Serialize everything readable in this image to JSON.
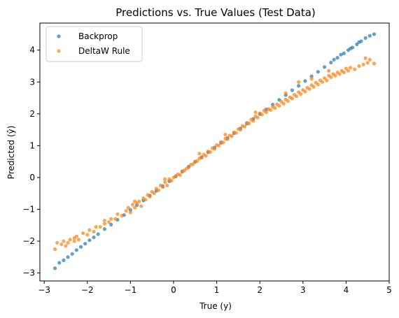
{
  "chart_data": {
    "type": "scatter",
    "title": "Predictions vs. True Values (Test Data)",
    "xlabel": "True (y)",
    "ylabel": "Predicted (ŷ)",
    "xlim": [
      -3.1,
      5.0
    ],
    "ylim": [
      -3.25,
      4.85
    ],
    "xticks": [
      -3,
      -2,
      -1,
      0,
      1,
      2,
      3,
      4,
      5
    ],
    "xtick_labels": [
      "−3",
      "−2",
      "−1",
      "0",
      "1",
      "2",
      "3",
      "4",
      "5"
    ],
    "yticks": [
      -3,
      -2,
      -1,
      0,
      1,
      2,
      3,
      4
    ],
    "ytick_labels": [
      "−3",
      "−2",
      "−1",
      "0",
      "1",
      "2",
      "3",
      "4"
    ],
    "grid": false,
    "legend_position": "upper-left",
    "series": [
      {
        "name": "Backprop",
        "color": "#1f77b4",
        "points": [
          [
            -2.75,
            -2.85
          ],
          [
            -2.65,
            -2.68
          ],
          [
            -2.55,
            -2.6
          ],
          [
            -2.45,
            -2.5
          ],
          [
            -2.35,
            -2.4
          ],
          [
            -2.25,
            -2.28
          ],
          [
            -2.15,
            -2.18
          ],
          [
            -2.05,
            -2.08
          ],
          [
            -1.95,
            -1.97
          ],
          [
            -1.85,
            -1.88
          ],
          [
            -1.75,
            -1.78
          ],
          [
            -1.6,
            -1.62
          ],
          [
            -1.45,
            -1.48
          ],
          [
            -1.3,
            -1.33
          ],
          [
            -1.15,
            -1.18
          ],
          [
            -1.0,
            -1.02
          ],
          [
            -0.85,
            -0.87
          ],
          [
            -0.7,
            -0.72
          ],
          [
            -0.55,
            -0.57
          ],
          [
            -0.4,
            -0.42
          ],
          [
            -0.25,
            -0.27
          ],
          [
            -0.1,
            -0.12
          ],
          [
            0.05,
            0.03
          ],
          [
            0.2,
            0.18
          ],
          [
            0.35,
            0.34
          ],
          [
            0.5,
            0.49
          ],
          [
            0.65,
            0.64
          ],
          [
            0.8,
            0.79
          ],
          [
            0.95,
            0.94
          ],
          [
            1.1,
            1.09
          ],
          [
            1.25,
            1.24
          ],
          [
            1.4,
            1.39
          ],
          [
            1.55,
            1.54
          ],
          [
            1.7,
            1.69
          ],
          [
            1.85,
            1.84
          ],
          [
            2.0,
            1.99
          ],
          [
            2.15,
            2.14
          ],
          [
            2.3,
            2.29
          ],
          [
            2.45,
            2.44
          ],
          [
            2.6,
            2.59
          ],
          [
            2.75,
            2.74
          ],
          [
            2.9,
            2.88
          ],
          [
            3.05,
            3.03
          ],
          [
            3.2,
            3.18
          ],
          [
            3.35,
            3.32
          ],
          [
            3.5,
            3.47
          ],
          [
            3.65,
            3.61
          ],
          [
            3.8,
            3.76
          ],
          [
            3.95,
            3.9
          ],
          [
            4.05,
            4.0
          ],
          [
            4.15,
            4.08
          ],
          [
            4.25,
            4.18
          ],
          [
            4.35,
            4.28
          ],
          [
            4.45,
            4.38
          ],
          [
            4.55,
            4.45
          ],
          [
            4.65,
            4.5
          ],
          [
            3.72,
            3.7
          ],
          [
            3.88,
            3.86
          ],
          [
            4.1,
            4.05
          ],
          [
            4.3,
            4.25
          ]
        ]
      },
      {
        "name": "DeltaW Rule",
        "color": "#ff7f0e",
        "points": [
          [
            -2.75,
            -2.25
          ],
          [
            -2.7,
            -2.05
          ],
          [
            -2.6,
            -2.1
          ],
          [
            -2.55,
            -2.0
          ],
          [
            -2.5,
            -2.15
          ],
          [
            -2.45,
            -2.05
          ],
          [
            -2.4,
            -1.95
          ],
          [
            -2.3,
            -2.0
          ],
          [
            -2.25,
            -1.85
          ],
          [
            -2.2,
            -1.95
          ],
          [
            -2.1,
            -1.75
          ],
          [
            -2.0,
            -1.8
          ],
          [
            -1.95,
            -1.65
          ],
          [
            -1.85,
            -1.7
          ],
          [
            -1.8,
            -1.55
          ],
          [
            -1.7,
            -1.55
          ],
          [
            -1.6,
            -1.45
          ],
          [
            -1.5,
            -1.4
          ],
          [
            -1.45,
            -1.3
          ],
          [
            -1.35,
            -1.3
          ],
          [
            -1.3,
            -1.15
          ],
          [
            -1.2,
            -1.2
          ],
          [
            -1.1,
            -1.05
          ],
          [
            -1.05,
            -0.95
          ],
          [
            -1.0,
            -1.1
          ],
          [
            -0.95,
            -0.85
          ],
          [
            -0.9,
            -0.95
          ],
          [
            -0.85,
            -0.8
          ],
          [
            -0.8,
            -0.75
          ],
          [
            -0.75,
            -0.9
          ],
          [
            -0.7,
            -0.65
          ],
          [
            -0.65,
            -0.7
          ],
          [
            -0.6,
            -0.55
          ],
          [
            -0.55,
            -0.6
          ],
          [
            -0.5,
            -0.45
          ],
          [
            -0.45,
            -0.5
          ],
          [
            -0.4,
            -0.35
          ],
          [
            -0.35,
            -0.4
          ],
          [
            -0.3,
            -0.25
          ],
          [
            -0.25,
            -0.3
          ],
          [
            -0.2,
            -0.15
          ],
          [
            -0.15,
            -0.25
          ],
          [
            -0.1,
            -0.05
          ],
          [
            -0.05,
            -0.1
          ],
          [
            0.0,
            0.0
          ],
          [
            0.05,
            0.05
          ],
          [
            0.1,
            0.1
          ],
          [
            0.15,
            0.08
          ],
          [
            0.2,
            0.2
          ],
          [
            0.25,
            0.22
          ],
          [
            0.3,
            0.28
          ],
          [
            0.35,
            0.32
          ],
          [
            0.4,
            0.4
          ],
          [
            0.45,
            0.42
          ],
          [
            0.5,
            0.5
          ],
          [
            0.55,
            0.52
          ],
          [
            0.6,
            0.6
          ],
          [
            0.65,
            0.62
          ],
          [
            0.7,
            0.72
          ],
          [
            0.75,
            0.68
          ],
          [
            0.8,
            0.82
          ],
          [
            0.85,
            0.8
          ],
          [
            0.9,
            0.92
          ],
          [
            0.95,
            0.9
          ],
          [
            1.0,
            1.02
          ],
          [
            1.05,
            1.0
          ],
          [
            1.1,
            1.12
          ],
          [
            1.15,
            1.1
          ],
          [
            1.2,
            1.22
          ],
          [
            1.25,
            1.2
          ],
          [
            1.3,
            1.32
          ],
          [
            1.35,
            1.3
          ],
          [
            1.4,
            1.42
          ],
          [
            1.45,
            1.4
          ],
          [
            1.5,
            1.52
          ],
          [
            1.55,
            1.5
          ],
          [
            1.6,
            1.62
          ],
          [
            1.65,
            1.6
          ],
          [
            1.7,
            1.72
          ],
          [
            1.75,
            1.7
          ],
          [
            1.8,
            1.82
          ],
          [
            1.85,
            1.78
          ],
          [
            1.9,
            1.92
          ],
          [
            1.95,
            1.88
          ],
          [
            2.0,
            2.02
          ],
          [
            2.05,
            1.98
          ],
          [
            2.1,
            2.1
          ],
          [
            2.15,
            2.05
          ],
          [
            2.2,
            2.15
          ],
          [
            2.25,
            2.12
          ],
          [
            2.3,
            2.22
          ],
          [
            2.35,
            2.18
          ],
          [
            2.4,
            2.3
          ],
          [
            2.45,
            2.25
          ],
          [
            2.5,
            2.38
          ],
          [
            2.55,
            2.32
          ],
          [
            2.6,
            2.45
          ],
          [
            2.65,
            2.4
          ],
          [
            2.7,
            2.52
          ],
          [
            2.75,
            2.48
          ],
          [
            2.8,
            2.6
          ],
          [
            2.85,
            2.55
          ],
          [
            2.9,
            2.68
          ],
          [
            2.95,
            2.62
          ],
          [
            3.0,
            2.75
          ],
          [
            3.05,
            2.7
          ],
          [
            3.1,
            2.82
          ],
          [
            3.15,
            2.78
          ],
          [
            3.2,
            2.9
          ],
          [
            3.25,
            2.85
          ],
          [
            3.3,
            2.98
          ],
          [
            3.35,
            2.92
          ],
          [
            3.4,
            3.05
          ],
          [
            3.45,
            3.0
          ],
          [
            3.5,
            3.12
          ],
          [
            3.55,
            3.05
          ],
          [
            3.6,
            3.2
          ],
          [
            3.65,
            3.15
          ],
          [
            3.7,
            3.25
          ],
          [
            3.75,
            3.2
          ],
          [
            3.8,
            3.3
          ],
          [
            3.85,
            3.25
          ],
          [
            3.9,
            3.35
          ],
          [
            3.95,
            3.3
          ],
          [
            4.0,
            3.42
          ],
          [
            4.05,
            3.35
          ],
          [
            4.1,
            3.45
          ],
          [
            4.2,
            3.4
          ],
          [
            4.3,
            3.5
          ],
          [
            4.4,
            3.55
          ],
          [
            4.5,
            3.6
          ],
          [
            4.65,
            3.58
          ],
          [
            4.55,
            3.7
          ],
          [
            4.45,
            3.75
          ],
          [
            3.2,
            3.1
          ],
          [
            2.6,
            2.65
          ],
          [
            1.9,
            2.05
          ],
          [
            1.2,
            1.35
          ],
          [
            0.6,
            0.75
          ],
          [
            -0.2,
            -0.05
          ],
          [
            -0.9,
            -0.75
          ],
          [
            -1.6,
            -1.35
          ],
          [
            -2.3,
            -1.9
          ],
          [
            2.9,
            3.0
          ],
          [
            3.6,
            3.35
          ]
        ]
      }
    ]
  }
}
